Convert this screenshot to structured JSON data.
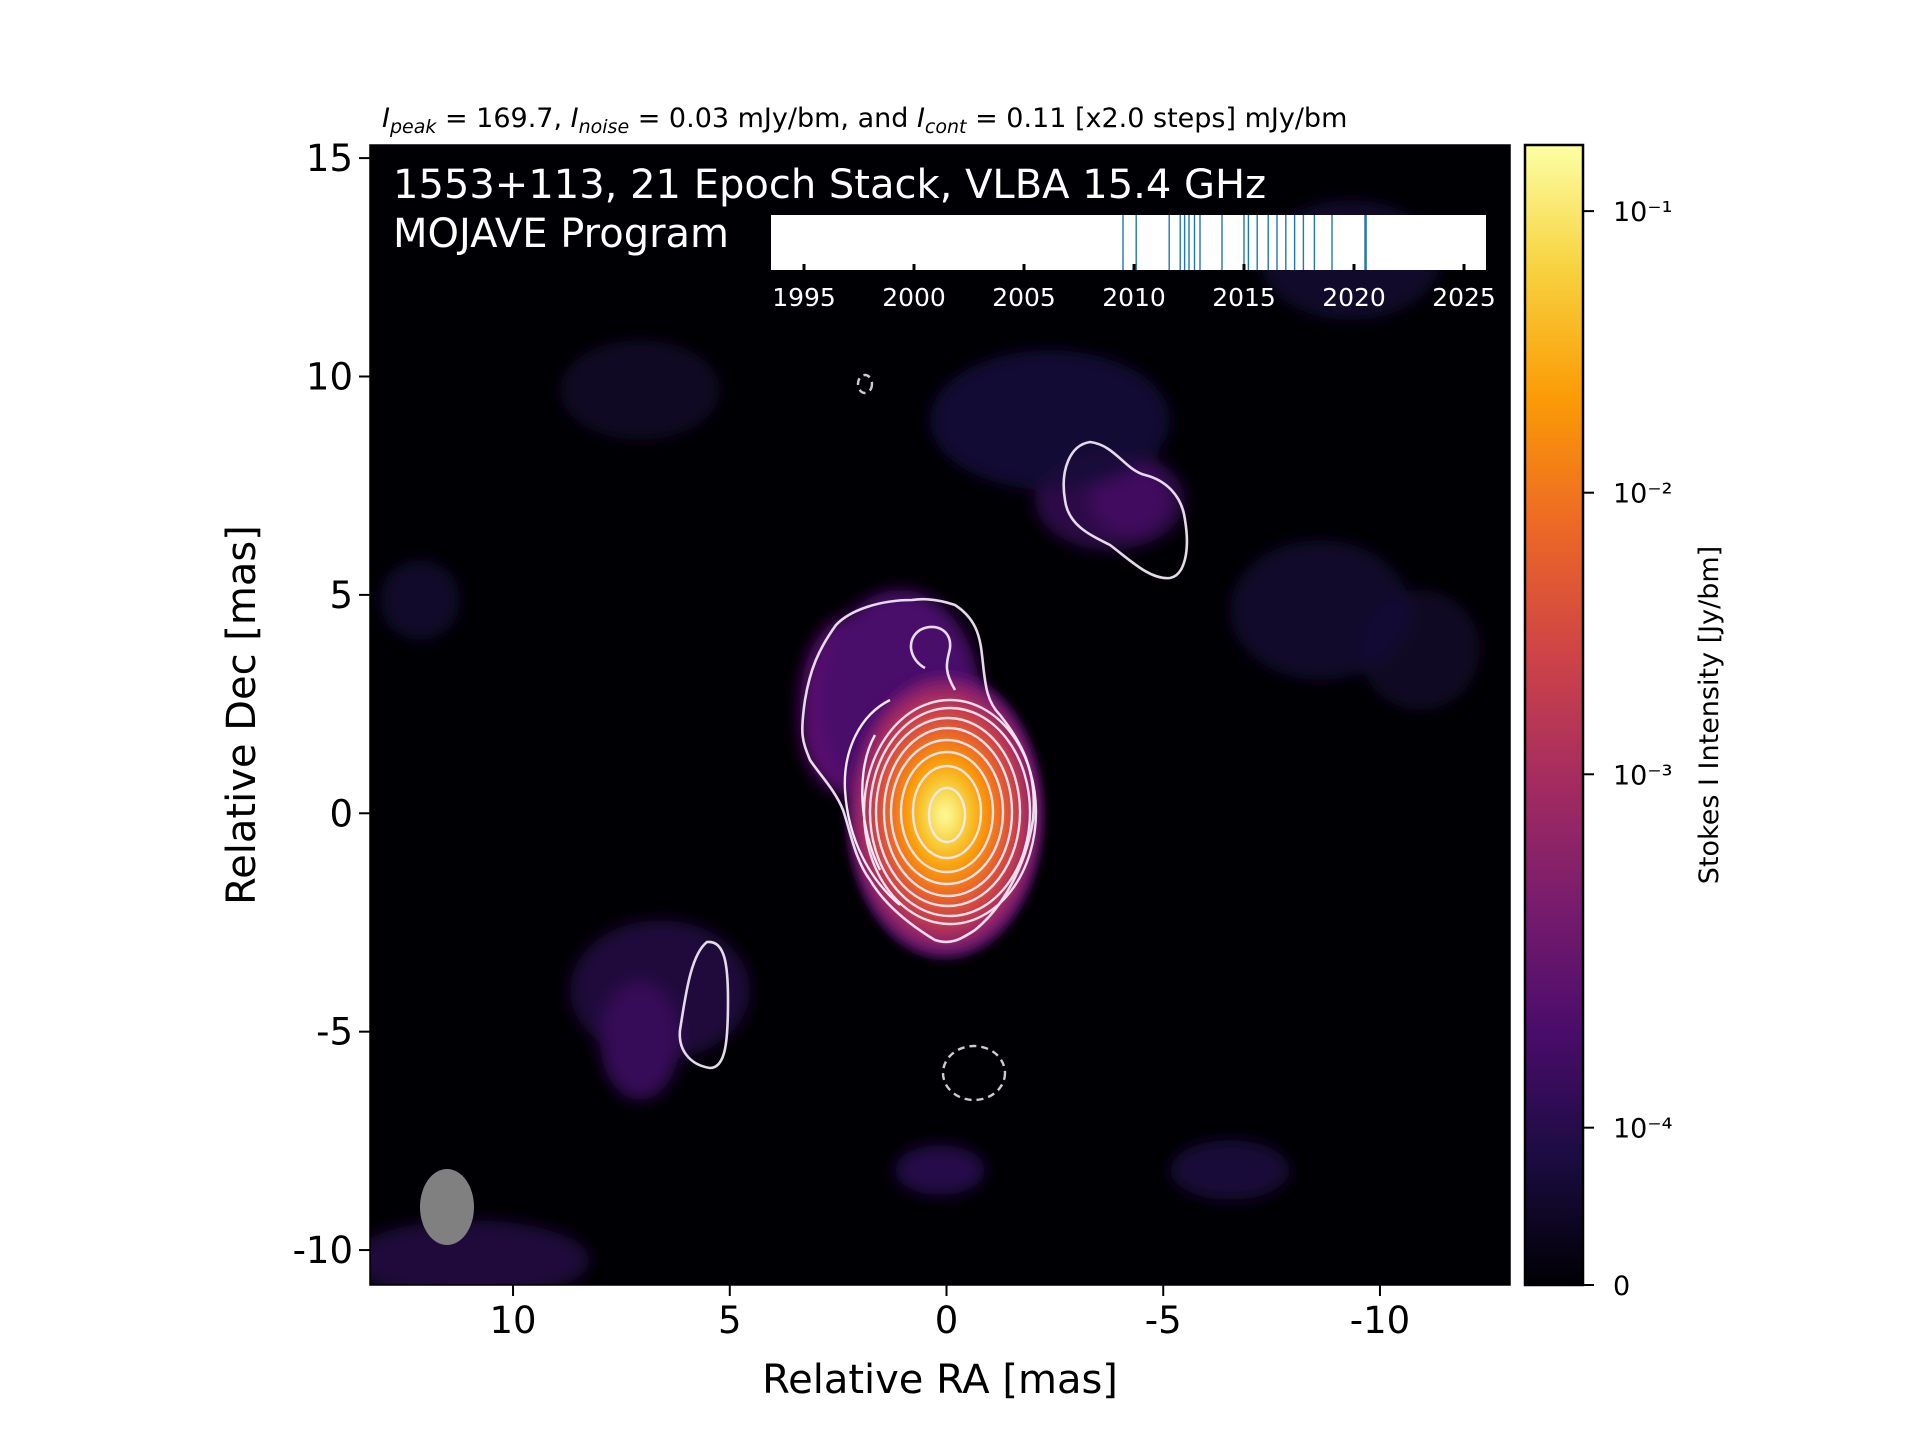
{
  "header_parts": [
    "I",
    "peak",
    " = 169.7, ",
    "I",
    "noise",
    " = 0.03 mJy/bm, and ",
    "I",
    "cont",
    " = 0.11 [x2.0 steps] mJy/bm"
  ],
  "chart_data": {
    "type": "heatmap",
    "title_line1": "1553+113, 21 Epoch Stack, VLBA 15.4 GHz",
    "title_line2": "MOJAVE Program",
    "xlabel": "Relative RA [mas]",
    "ylabel": "Relative Dec [mas]",
    "xlim": [
      13.3,
      -13
    ],
    "ylim": [
      -10.8,
      15.3
    ],
    "xticks": [
      10,
      5,
      0,
      -5,
      -10
    ],
    "xtick_labels": [
      "10",
      "5",
      "0",
      "-5",
      "-10"
    ],
    "yticks": [
      15,
      10,
      5,
      0,
      -5,
      -10
    ],
    "ytick_labels": [
      "15",
      "10",
      "5",
      "0",
      "-5",
      "-10"
    ],
    "colorbar": {
      "label": "Stokes I Intensity [Jy/bm]",
      "scale": "log-like",
      "ticks": [
        {
          "value": 0.1,
          "label": "10⁻¹"
        },
        {
          "value": 0.01,
          "label": "10⁻²"
        },
        {
          "value": 0.001,
          "label": "10⁻³"
        },
        {
          "value": 0.0001,
          "label": "10⁻⁴"
        },
        {
          "value": 0,
          "label": "0"
        }
      ],
      "colormap": "inferno",
      "colors": [
        "#000004",
        "#1b0c41",
        "#4a0c6b",
        "#781c6d",
        "#a52c60",
        "#cf4446",
        "#ed6925",
        "#fb9b06",
        "#f7d13d",
        "#fcffa4"
      ]
    },
    "core": {
      "ra": 0,
      "dec": 0
    },
    "contour_levels_n": 10,
    "beam": {
      "ra": 11.5,
      "dec": -9.0,
      "major": 1.75,
      "minor": 1.2
    },
    "epoch_timeline": {
      "xlim": [
        1993.5,
        2026
      ],
      "ticks": [
        1995,
        2000,
        2005,
        2010,
        2015,
        2020,
        2025
      ],
      "tick_labels": [
        "1995",
        "2000",
        "2005",
        "2010",
        "2015",
        "2020",
        "2025"
      ],
      "epochs": [
        2009.5,
        2010.1,
        2011.6,
        2012.1,
        2012.3,
        2012.5,
        2012.75,
        2013.0,
        2014.0,
        2015.0,
        2015.2,
        2015.6,
        2016.1,
        2016.5,
        2016.9,
        2017.3,
        2017.7,
        2018.2,
        2019.0,
        2020.5,
        2020.55
      ],
      "line_color": "#1f77b4"
    }
  }
}
